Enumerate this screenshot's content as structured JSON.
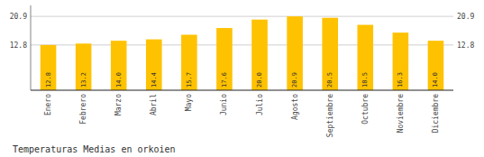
{
  "chart_data": {
    "type": "bar",
    "title": "Temperaturas Medias en orkoien",
    "categories": [
      "Enero",
      "Febrero",
      "Marzo",
      "Abril",
      "Mayo",
      "Junio",
      "Julio",
      "Agosto",
      "Septiembre",
      "Octubre",
      "Noviembre",
      "Diciembre"
    ],
    "values": [
      12.8,
      13.2,
      14.0,
      14.4,
      15.7,
      17.6,
      20.0,
      20.9,
      20.5,
      18.5,
      16.3,
      14.0
    ],
    "value_labels": [
      "12.8",
      "13.2",
      "14.0",
      "14.4",
      "15.7",
      "17.6",
      "20.0",
      "20.9",
      "20.5",
      "18.5",
      "16.3",
      "14.0"
    ],
    "color": "#FFC200",
    "ylim": [
      0.0,
      24.0
    ],
    "yticks": [
      12.8,
      20.9
    ],
    "grid": true,
    "data_labels": true
  }
}
